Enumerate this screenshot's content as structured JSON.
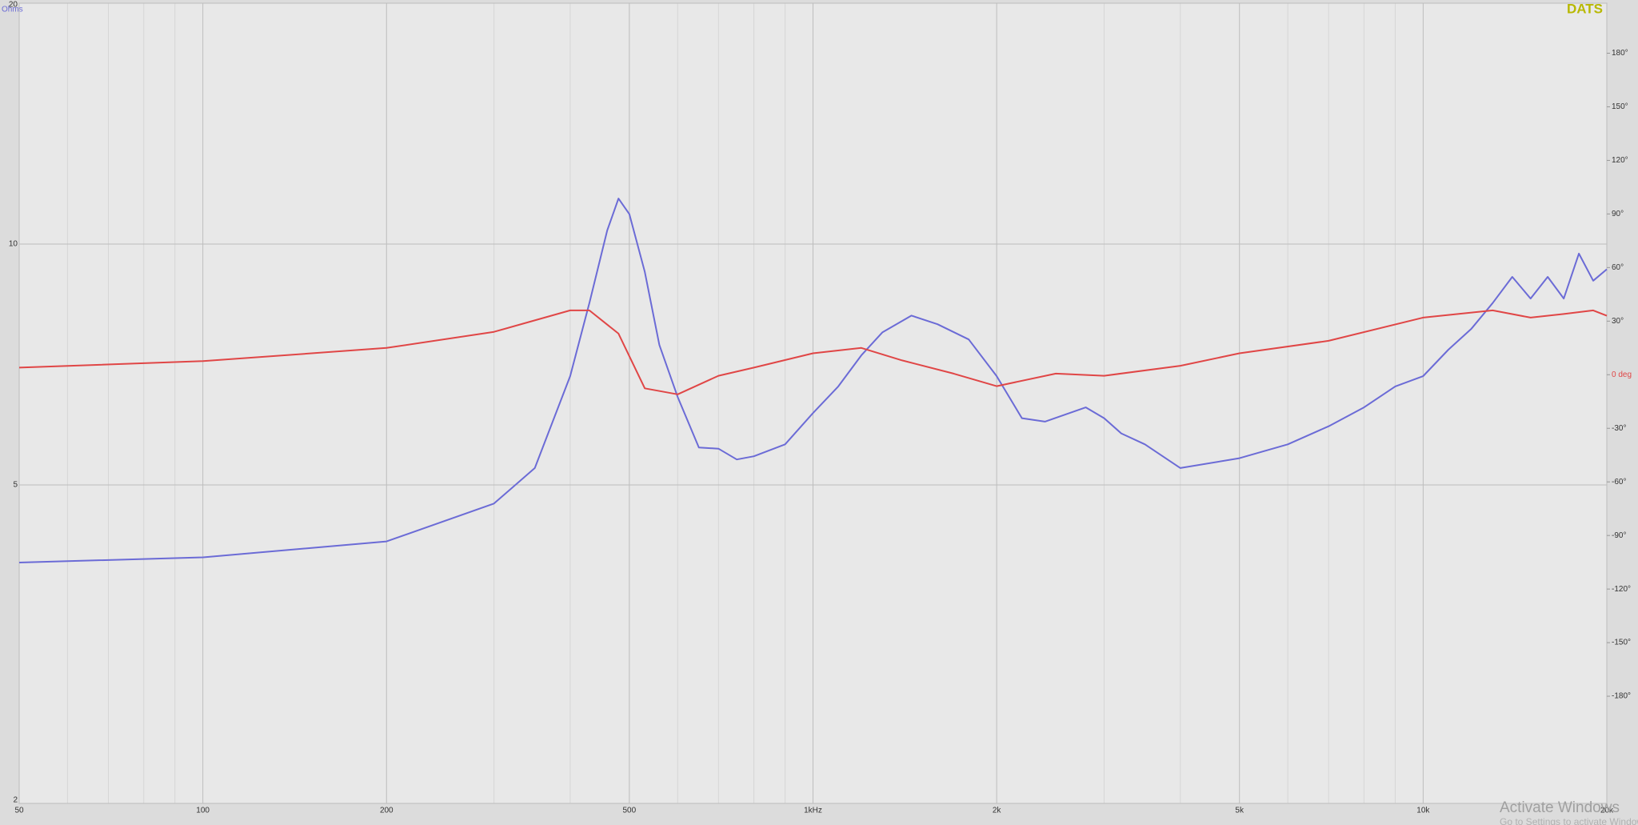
{
  "chart_data": {
    "type": "line",
    "brand": "DATS",
    "ylabel": "Ohms",
    "watermark": [
      "Activate Windows",
      "Go to Settings to activate Windows."
    ],
    "xscale": "log",
    "yscale": "log",
    "y2scale": "linear",
    "xlim": [
      50,
      20000
    ],
    "xticks": [
      50,
      100,
      200,
      500,
      {
        "value": 1000,
        "label": "1kHz"
      },
      {
        "value": 2000,
        "label": "2k"
      },
      {
        "value": 5000,
        "label": "5k"
      },
      {
        "value": 10000,
        "label": "10k"
      },
      {
        "value": 20000,
        "label": "20k"
      }
    ],
    "x_minor_ticks": [
      60,
      70,
      80,
      90,
      300,
      400,
      600,
      700,
      800,
      900,
      3000,
      4000,
      6000,
      7000,
      8000,
      9000
    ],
    "ylim": [
      2,
      20
    ],
    "yticks": [
      2,
      5,
      10,
      20
    ],
    "y2lim": [
      -240,
      208
    ],
    "y2ticks": [
      {
        "value": 180,
        "label": "180°"
      },
      {
        "value": 150,
        "label": "150°"
      },
      {
        "value": 120,
        "label": "120°"
      },
      {
        "value": 90,
        "label": "90°"
      },
      {
        "value": 60,
        "label": "60°"
      },
      {
        "value": 30,
        "label": "30°"
      },
      {
        "value": 0,
        "label": "0 deg"
      },
      {
        "value": -30,
        "label": "-30°"
      },
      {
        "value": -60,
        "label": "-60°"
      },
      {
        "value": -90,
        "label": "-90°"
      },
      {
        "value": -120,
        "label": "-120°"
      },
      {
        "value": -150,
        "label": "-150°"
      },
      {
        "value": -180,
        "label": "-180°"
      }
    ],
    "grid": true,
    "series": [
      {
        "color": "#6b6bd6",
        "axis": "y",
        "x": [
          50,
          100,
          200,
          300,
          350,
          400,
          430,
          460,
          480,
          500,
          530,
          560,
          600,
          650,
          700,
          750,
          800,
          900,
          1000,
          1100,
          1200,
          1300,
          1450,
          1600,
          1800,
          2000,
          2200,
          2400,
          2800,
          3000,
          3200,
          3500,
          4000,
          5000,
          6000,
          7000,
          8000,
          9000,
          10000,
          11000,
          12000,
          13000,
          14000,
          15000,
          16000,
          17000,
          18000,
          19000,
          20000
        ],
        "values": [
          4.0,
          4.06,
          4.25,
          4.74,
          5.25,
          6.84,
          8.44,
          10.4,
          11.4,
          10.9,
          9.23,
          7.48,
          6.44,
          5.57,
          5.55,
          5.38,
          5.43,
          5.62,
          6.15,
          6.64,
          7.26,
          7.76,
          8.14,
          7.94,
          7.6,
          6.84,
          6.06,
          6.0,
          6.25,
          6.06,
          5.8,
          5.62,
          5.25,
          5.4,
          5.62,
          5.92,
          6.25,
          6.64,
          6.84,
          7.38,
          7.84,
          8.44,
          9.1,
          8.55,
          9.1,
          8.55,
          9.73,
          9.0,
          9.3
        ]
      },
      {
        "color": "#e04646",
        "axis": "y2",
        "x": [
          50,
          100,
          200,
          300,
          400,
          430,
          480,
          530,
          600,
          700,
          800,
          1000,
          1200,
          1400,
          1700,
          2000,
          2500,
          3000,
          4000,
          5000,
          7000,
          10000,
          13000,
          15000,
          17000,
          19000,
          20000
        ],
        "values": [
          4,
          7.6,
          15,
          24,
          36,
          36,
          23,
          -7.6,
          -11,
          -0.6,
          4,
          12,
          15,
          8,
          0.6,
          -6.4,
          0.6,
          -0.6,
          5,
          12,
          19,
          32,
          36,
          32,
          34,
          36,
          33
        ]
      }
    ]
  }
}
